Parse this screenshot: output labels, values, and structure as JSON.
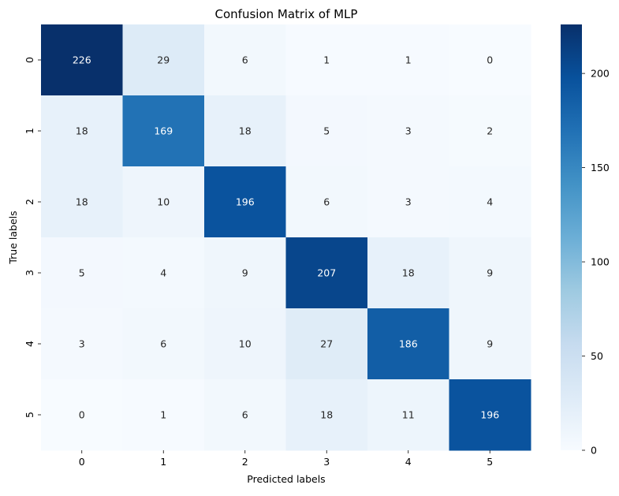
{
  "chart_data": {
    "type": "heatmap",
    "title": "Confusion Matrix of MLP",
    "xlabel": "Predicted labels",
    "ylabel": "True labels",
    "x_categories": [
      "0",
      "1",
      "2",
      "3",
      "4",
      "5"
    ],
    "y_categories": [
      "0",
      "1",
      "2",
      "3",
      "4",
      "5"
    ],
    "values": [
      [
        226,
        29,
        6,
        1,
        1,
        0
      ],
      [
        18,
        169,
        18,
        5,
        3,
        2
      ],
      [
        18,
        10,
        196,
        6,
        3,
        4
      ],
      [
        5,
        4,
        9,
        207,
        18,
        9
      ],
      [
        3,
        6,
        10,
        27,
        186,
        9
      ],
      [
        0,
        1,
        6,
        18,
        11,
        196
      ]
    ],
    "colormap": "Blues",
    "vmin": 0,
    "vmax": 226,
    "colorbar_ticks": [
      0,
      50,
      100,
      150,
      200
    ]
  }
}
